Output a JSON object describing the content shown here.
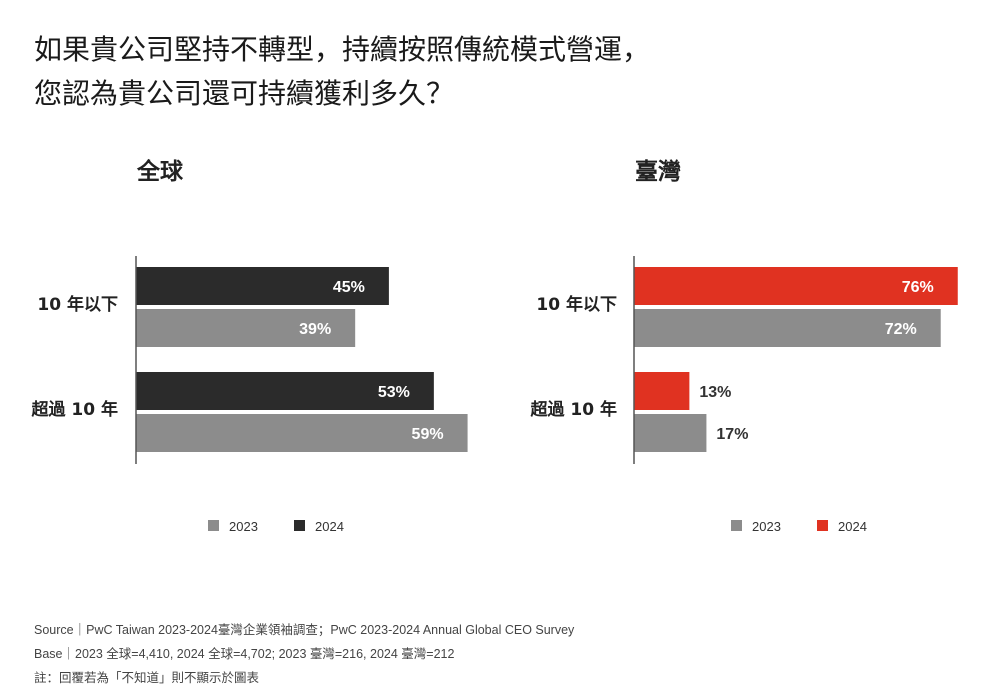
{
  "title": {
    "line1": "如果貴公司堅持不轉型，持續按照傳統模式營運，",
    "line2": "您認為貴公司還可持續獲利多久？"
  },
  "colors": {
    "bar_2023": "#8c8c8c",
    "bar_2024_global": "#2b2b2b",
    "bar_2024_taiwan": "#e03221",
    "axis": "#555555"
  },
  "chart_data": [
    {
      "type": "bar",
      "orientation": "horizontal",
      "title": "全球",
      "categories": [
        "10 年以下",
        "超過 10 年"
      ],
      "series": [
        {
          "name": "2024",
          "values": [
            45,
            53
          ],
          "labels": [
            "45%",
            "53%"
          ]
        },
        {
          "name": "2023",
          "values": [
            39,
            59
          ],
          "labels": [
            "39%",
            "59%"
          ]
        }
      ],
      "legend": [
        "2023",
        "2024"
      ],
      "legend_position": "bottom",
      "xlim": [
        0,
        100
      ],
      "unit": "%"
    },
    {
      "type": "bar",
      "orientation": "horizontal",
      "title": "臺灣",
      "categories": [
        "10 年以下",
        "超過 10 年"
      ],
      "series": [
        {
          "name": "2024",
          "values": [
            76,
            13
          ],
          "labels": [
            "76%",
            "13%"
          ]
        },
        {
          "name": "2023",
          "values": [
            72,
            17
          ],
          "labels": [
            "72%",
            "17%"
          ]
        }
      ],
      "legend": [
        "2023",
        "2024"
      ],
      "legend_position": "bottom",
      "xlim": [
        0,
        100
      ],
      "unit": "%"
    }
  ],
  "footer": {
    "source": "Source｜PwC Taiwan 2023-2024臺灣企業領袖調查；PwC 2023-2024 Annual Global CEO Survey",
    "base": "Base｜2023 全球=4,410, 2024 全球=4,702; 2023 臺灣=216, 2024 臺灣=212",
    "note": "註：回覆若為「不知道」則不顯示於圖表"
  }
}
